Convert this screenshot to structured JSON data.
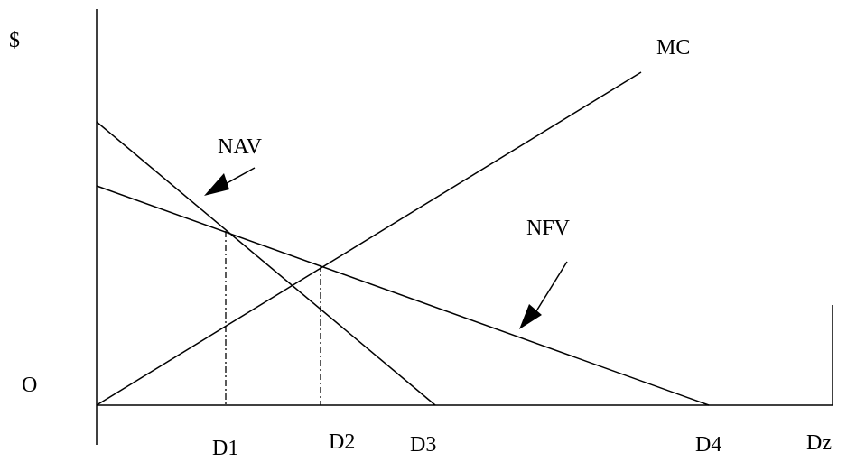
{
  "labels": {
    "y_axis": "$",
    "origin": "O",
    "mc": "MC",
    "nav": "NAV",
    "nfv": "NFV",
    "d1": "D1",
    "d2": "D2",
    "d3": "D3",
    "d4": "D4",
    "dz": "Dz"
  },
  "colors": {
    "line": "#000000",
    "background": "#ffffff"
  }
}
